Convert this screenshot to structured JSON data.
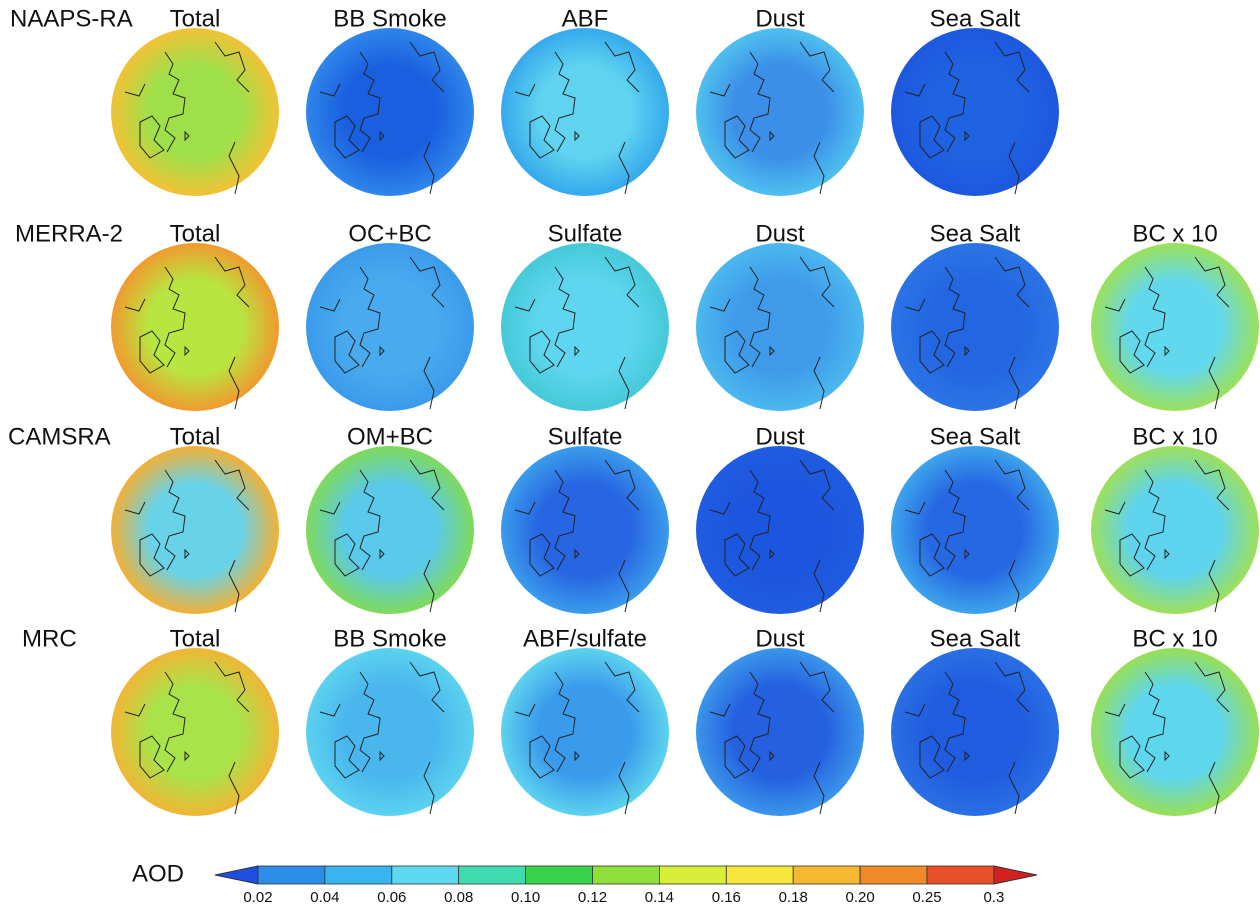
{
  "rows": [
    {
      "label": "NAAPS-RA",
      "panels": [
        {
          "title": "Total",
          "inner": "#9fe04a",
          "outer": "#f2c236"
        },
        {
          "title": "BB Smoke",
          "inner": "#1a5fe0",
          "outer": "#2f86ea"
        },
        {
          "title": "ABF",
          "inner": "#5fd3ef",
          "outer": "#35a9ec"
        },
        {
          "title": "Dust",
          "inner": "#3b8fe8",
          "outer": "#4fc0ef"
        },
        {
          "title": "Sea Salt",
          "inner": "#1f62e2",
          "outer": "#1d58de"
        }
      ]
    },
    {
      "label": "MERRA-2",
      "panels": [
        {
          "title": "Total",
          "inner": "#b8e640",
          "outer": "#f09a2e"
        },
        {
          "title": "OC+BC",
          "inner": "#4aaaee",
          "outer": "#3a9bec"
        },
        {
          "title": "Sulfate",
          "inner": "#5fd6ef",
          "outer": "#45c9d9"
        },
        {
          "title": "Dust",
          "inner": "#3f9bea",
          "outer": "#4bb8ee"
        },
        {
          "title": "Sea Salt",
          "inner": "#2366e2",
          "outer": "#2b74e6"
        },
        {
          "title": "BC x 10",
          "inner": "#62d8ee",
          "outer": "#9be15a"
        }
      ]
    },
    {
      "label": "CAMSRA",
      "panels": [
        {
          "title": "Total",
          "inner": "#68d3e8",
          "outer": "#f2b035"
        },
        {
          "title": "OM+BC",
          "inner": "#5ac9ea",
          "outer": "#7fda5a"
        },
        {
          "title": "Sulfate",
          "inner": "#2765e2",
          "outer": "#3a9ceb"
        },
        {
          "title": "Dust",
          "inner": "#1c56de",
          "outer": "#1f5ce0"
        },
        {
          "title": "Sea Salt",
          "inner": "#2667e3",
          "outer": "#3da4ec"
        },
        {
          "title": "BC x 10",
          "inner": "#5ed3ee",
          "outer": "#9ee05a"
        }
      ]
    },
    {
      "label": "MRC",
      "panels": [
        {
          "title": "Total",
          "inner": "#a9e34a",
          "outer": "#f1b635"
        },
        {
          "title": "BB Smoke",
          "inner": "#49b6ee",
          "outer": "#5bd2ef"
        },
        {
          "title": "ABF/sulfate",
          "inner": "#3a9bec",
          "outer": "#5dd3ee"
        },
        {
          "title": "Dust",
          "inner": "#2460e0",
          "outer": "#3b96ea"
        },
        {
          "title": "Sea Salt",
          "inner": "#1f5ce0",
          "outer": "#2a6fe4"
        },
        {
          "title": "BC x 10",
          "inner": "#5ed6ee",
          "outer": "#98df56"
        }
      ]
    }
  ],
  "colorbar": {
    "label": "AOD",
    "ticks": [
      "0.02",
      "0.04",
      "0.06",
      "0.08",
      "0.10",
      "0.12",
      "0.14",
      "0.16",
      "0.18",
      "0.20",
      "0.25",
      "0.3"
    ],
    "colors": [
      "#1f4fe0",
      "#2a8ee8",
      "#38b4ef",
      "#5dd8f0",
      "#3fdcb0",
      "#3ad24a",
      "#8fe03a",
      "#d8ef3a",
      "#f4e63a",
      "#f5b830",
      "#f08a28",
      "#e8502a",
      "#d42020"
    ]
  }
}
